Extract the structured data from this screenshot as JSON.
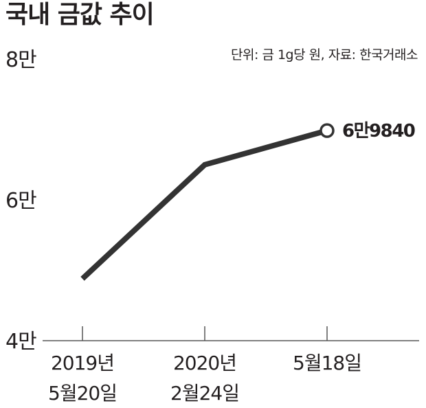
{
  "title": "국내 금값 추이",
  "source_note": "단위: 금 1g당 원, 자료: 한국거래소",
  "chart_data": {
    "type": "line",
    "title": "국내 금값 추이",
    "unit": "금 1g당 원",
    "source": "한국거래소",
    "x": [
      [
        "2019년",
        "5월20일"
      ],
      [
        "2020년",
        "2월24일"
      ],
      [
        "5월18일"
      ]
    ],
    "values": [
      48800,
      65000,
      69840
    ],
    "ylim": [
      40000,
      80000
    ],
    "yticks": [
      {
        "value": 40000,
        "label": "4만"
      },
      {
        "value": 60000,
        "label": "6만"
      },
      {
        "value": 80000,
        "label": "8만"
      }
    ],
    "data_labels": [
      {
        "index": 2,
        "text": "6만9840"
      }
    ],
    "grid": false,
    "line_color": "#333333",
    "marker_fill": "#ffffff"
  }
}
